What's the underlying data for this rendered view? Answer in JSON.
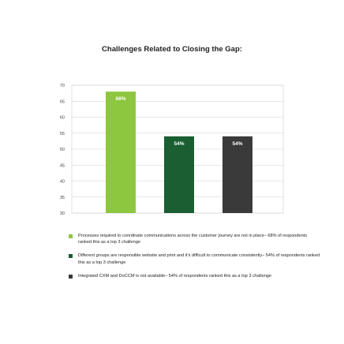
{
  "chart_data": {
    "type": "bar",
    "title": "Challenges Related to Closing the Gap:",
    "xlabel": "",
    "ylabel": "",
    "ylim": [
      30,
      70
    ],
    "yticks": [
      30,
      35,
      40,
      45,
      50,
      55,
      60,
      65,
      70
    ],
    "grid": true,
    "legend_position": "bottom",
    "categories": [
      "Processes",
      "Different groups",
      "Integrated CXM and DoCCM"
    ],
    "values": [
      68,
      54,
      54
    ],
    "data_labels": [
      "68%",
      "54%",
      "54%"
    ],
    "colors": [
      "#8dc63f",
      "#1a5e32",
      "#3a3a3a"
    ],
    "legend": [
      "Processes required to coordinate communications across the customer journey are not in place– 68% of respondents ranked this as a top 3 challenge",
      "Different groups are responsible website and print and it's difficult to communicate consistently– 54% of respondents ranked this as a top 3 challenge",
      "Integrated CXM and DoCCM is not available– 54% of respondents ranked this as a top 3 challenge"
    ]
  }
}
